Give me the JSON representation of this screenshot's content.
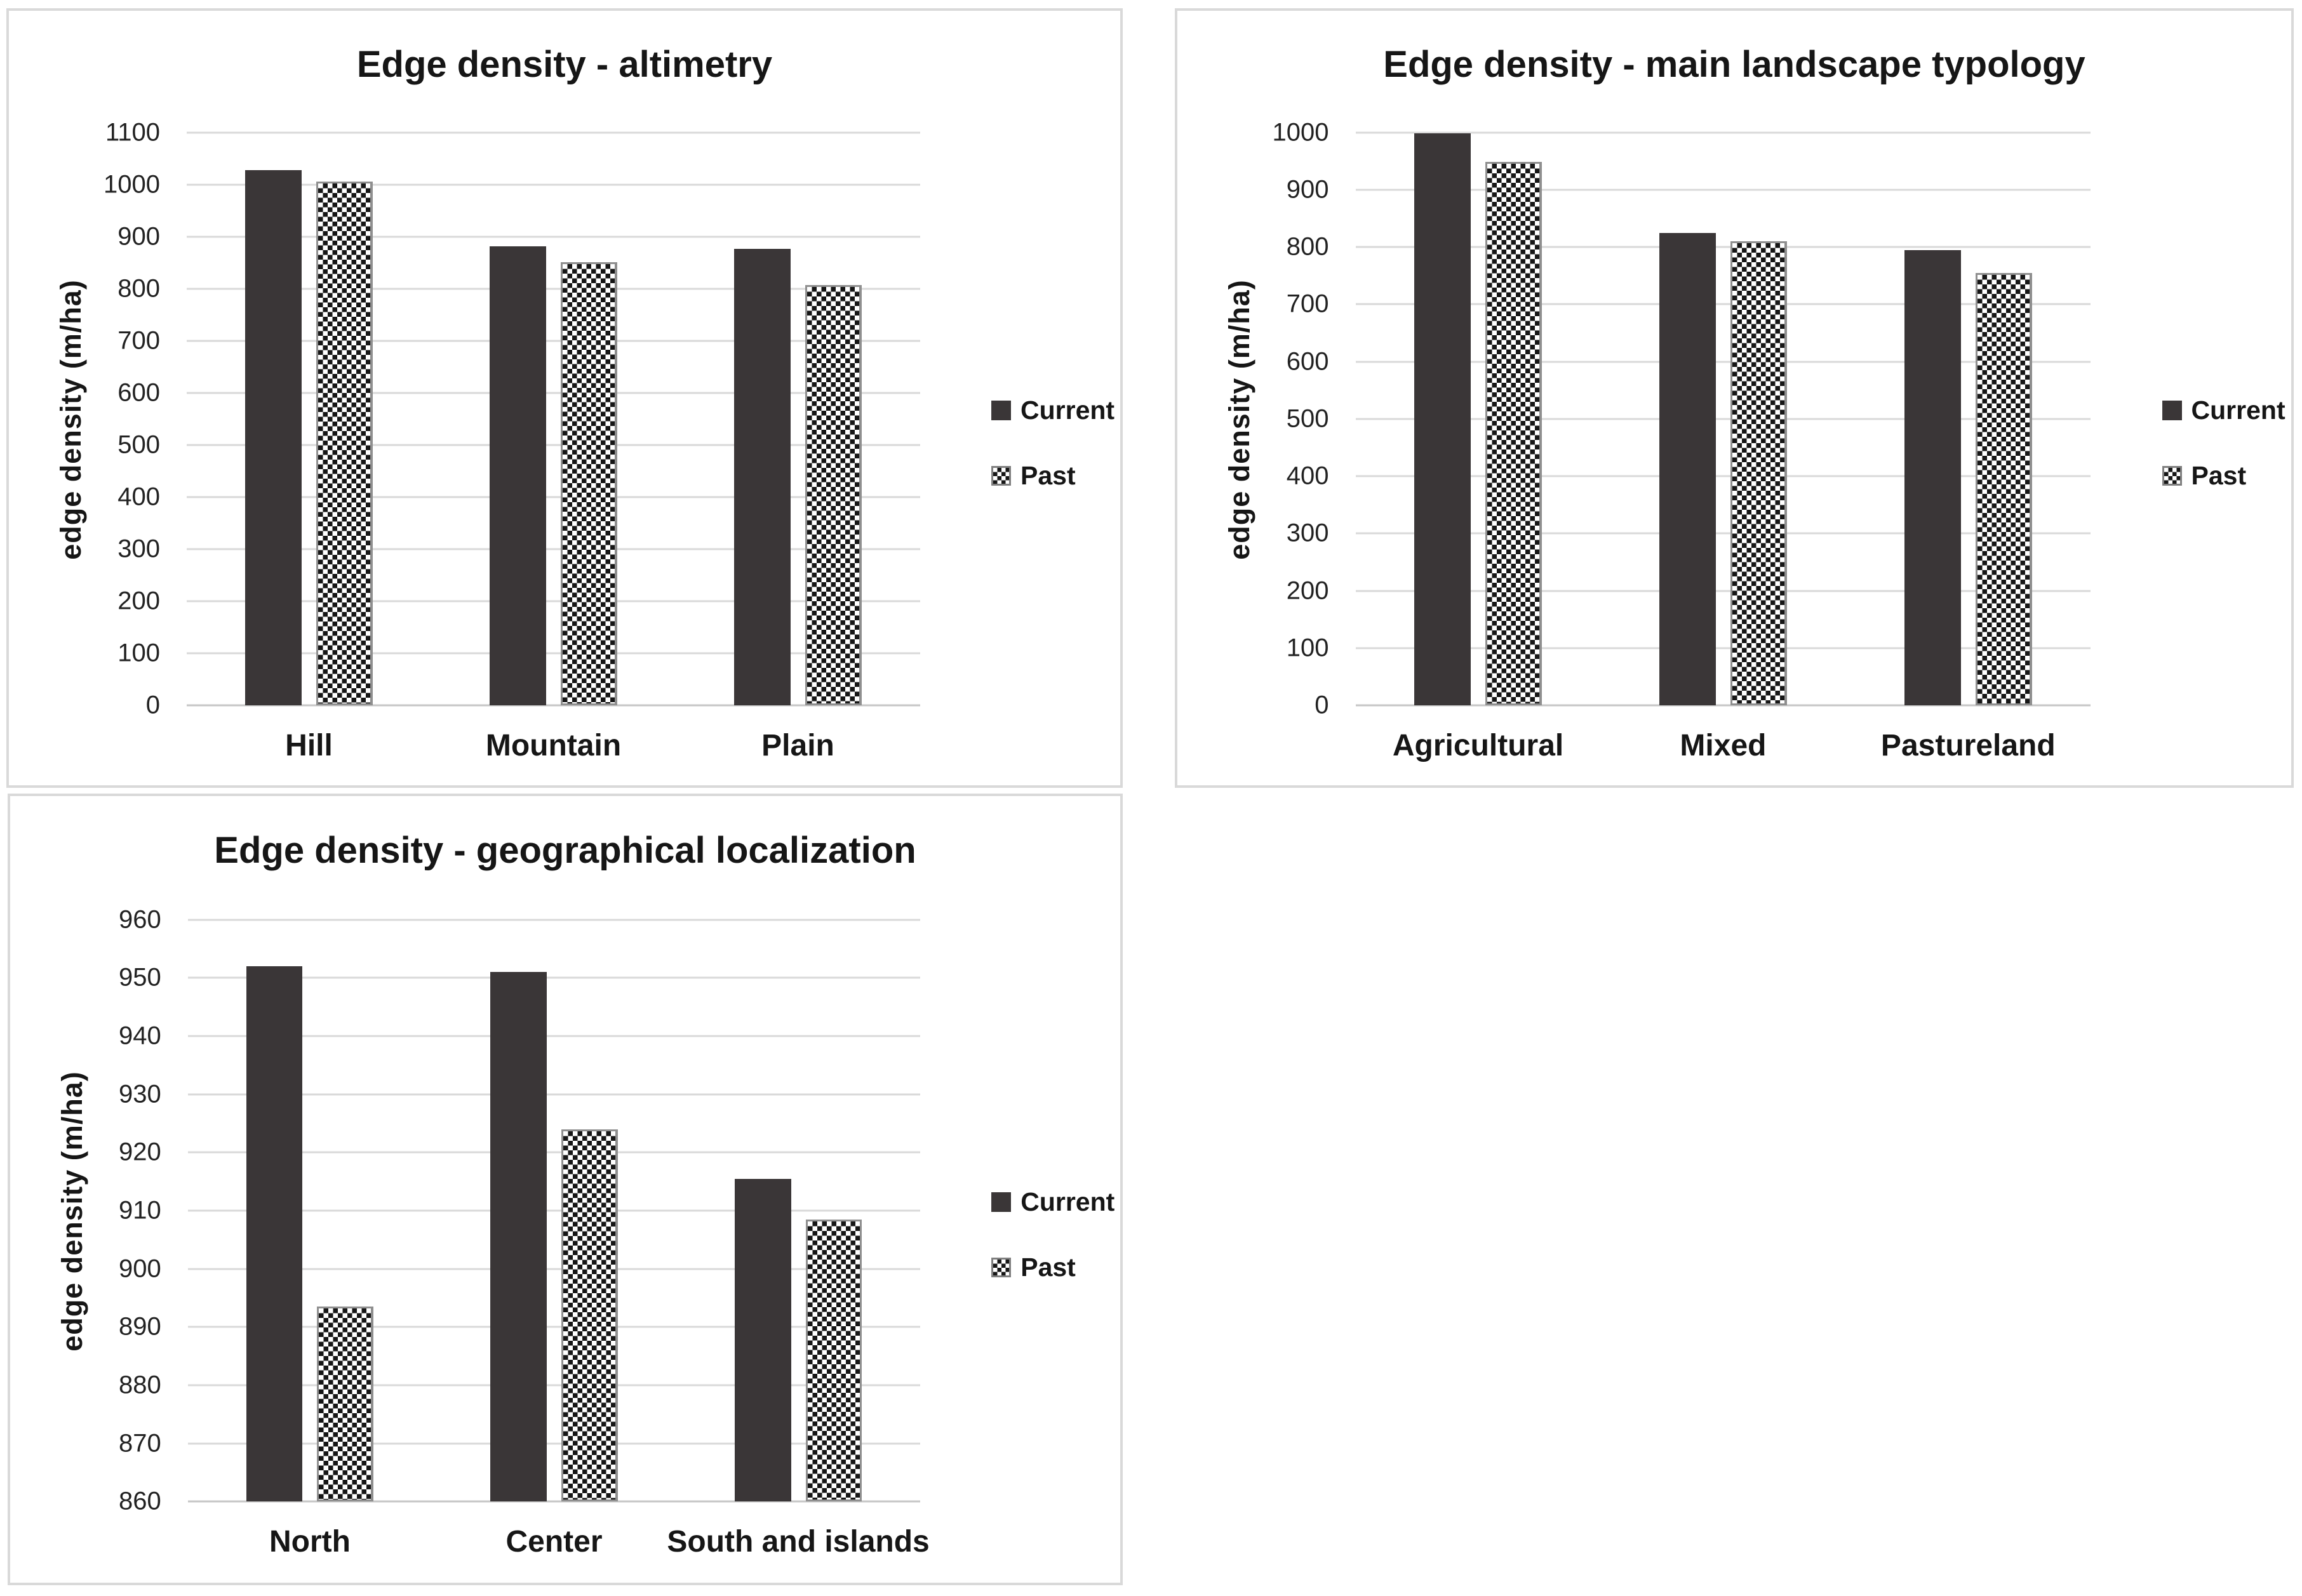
{
  "figure": {
    "background": "#ffffff",
    "panel_border_color": "#d9d9d9"
  },
  "colors": {
    "current_bar": "#3a3637",
    "past_checker_dark": "#161616",
    "past_checker_light": "#ffffff",
    "past_bar_border": "#8f8f8f",
    "gridline": "#d9d9d9",
    "axis_line": "#c6c6c6",
    "text": "#161616"
  },
  "chart_data": [
    {
      "type": "bar",
      "title": "Edge density - altimetry",
      "ylabel": "edge density (m/ha)",
      "xlabel": "",
      "categories": [
        "Hill",
        "Mountain",
        "Plain"
      ],
      "series": [
        {
          "name": "Current",
          "values": [
            1028,
            881,
            876
          ],
          "style": "solid"
        },
        {
          "name": "Past",
          "values": [
            1006,
            851,
            807
          ],
          "style": "checker"
        }
      ],
      "ylim": [
        0,
        1100
      ],
      "ytick_step": 100,
      "grid": true,
      "legend_position": "right"
    },
    {
      "type": "bar",
      "title": "Edge density - main landscape typology",
      "ylabel": "edge density (m/ha)",
      "xlabel": "",
      "categories": [
        "Agricultural",
        "Mixed",
        "Pastureland"
      ],
      "series": [
        {
          "name": "Current",
          "values": [
            998,
            825,
            795
          ],
          "style": "solid"
        },
        {
          "name": "Past",
          "values": [
            948,
            810,
            755
          ],
          "style": "checker"
        }
      ],
      "ylim": [
        0,
        1000
      ],
      "ytick_step": 100,
      "grid": true,
      "legend_position": "right"
    },
    {
      "type": "bar",
      "title": "Edge density - geographical localization",
      "ylabel": "edge density (m/ha)",
      "xlabel": "",
      "categories": [
        "North",
        "Center",
        "South and islands"
      ],
      "series": [
        {
          "name": "Current",
          "values": [
            952,
            951,
            915.5
          ],
          "style": "solid"
        },
        {
          "name": "Past",
          "values": [
            893.5,
            924,
            908.5
          ],
          "style": "checker"
        }
      ],
      "ylim": [
        860,
        960
      ],
      "ytick_step": 10,
      "grid": true,
      "legend_position": "right"
    }
  ]
}
